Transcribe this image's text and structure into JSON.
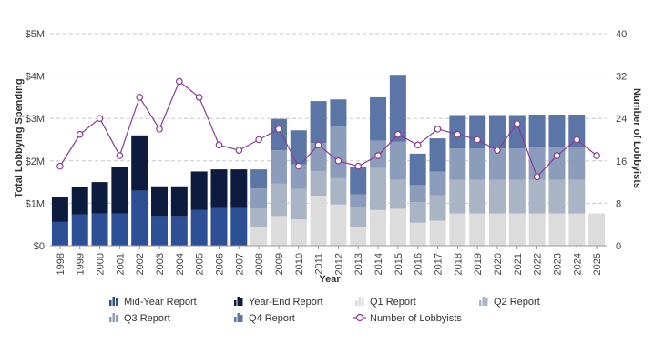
{
  "chart_data": {
    "type": "bar",
    "stacked": true,
    "xlabel": "Year",
    "ylabel": "Total Lobbying Spending",
    "y2label": "Number of Lobbyists",
    "ylim": [
      0,
      5000000
    ],
    "y2lim": [
      0,
      40
    ],
    "yticks": [
      {
        "value": 0,
        "label": "$0"
      },
      {
        "value": 1000000,
        "label": "$1M"
      },
      {
        "value": 2000000,
        "label": "$2M"
      },
      {
        "value": 3000000,
        "label": "$3M"
      },
      {
        "value": 4000000,
        "label": "$4M"
      },
      {
        "value": 5000000,
        "label": "$5M"
      }
    ],
    "y2ticks": [
      {
        "value": 0,
        "label": "0"
      },
      {
        "value": 8,
        "label": "8"
      },
      {
        "value": 16,
        "label": "16"
      },
      {
        "value": 24,
        "label": "24"
      },
      {
        "value": 32,
        "label": "32"
      },
      {
        "value": 40,
        "label": "40"
      }
    ],
    "grid": true,
    "legend_position": "bottom",
    "categories": [
      "1998",
      "1999",
      "2000",
      "2001",
      "2002",
      "2003",
      "2004",
      "2005",
      "2006",
      "2007",
      "2008",
      "2009",
      "2010",
      "2011",
      "2012",
      "2013",
      "2014",
      "2015",
      "2016",
      "2017",
      "2018",
      "2019",
      "2020",
      "2021",
      "2022",
      "2023",
      "2024",
      "2025"
    ],
    "series": [
      {
        "name": "Mid-Year Report",
        "kind": "bar",
        "color": "#2c4f96",
        "values": [
          560000,
          740000,
          760000,
          760000,
          1300000,
          700000,
          700000,
          840000,
          890000,
          890000,
          0,
          0,
          0,
          0,
          0,
          0,
          0,
          0,
          0,
          0,
          0,
          0,
          0,
          0,
          0,
          0,
          0,
          0
        ]
      },
      {
        "name": "Year-End Report",
        "kind": "bar",
        "color": "#0d1b3e",
        "values": [
          590000,
          650000,
          740000,
          1100000,
          1300000,
          700000,
          700000,
          910000,
          910000,
          910000,
          0,
          0,
          0,
          0,
          0,
          0,
          0,
          0,
          0,
          0,
          0,
          0,
          0,
          0,
          0,
          0,
          0,
          0
        ]
      },
      {
        "name": "Q1 Report",
        "kind": "bar",
        "color": "#dcdcdc",
        "values": [
          0,
          0,
          0,
          0,
          0,
          0,
          0,
          0,
          0,
          0,
          440000,
          700000,
          620000,
          1180000,
          970000,
          440000,
          840000,
          870000,
          540000,
          590000,
          760000,
          760000,
          760000,
          760000,
          760000,
          760000,
          760000,
          760000
        ]
      },
      {
        "name": "Q2 Report",
        "kind": "bar",
        "color": "#a9b4c4",
        "values": [
          0,
          0,
          0,
          0,
          0,
          0,
          0,
          0,
          0,
          0,
          440000,
          770000,
          720000,
          580000,
          620000,
          480000,
          990000,
          680000,
          490000,
          600000,
          790000,
          790000,
          790000,
          790000,
          790000,
          790000,
          790000,
          0
        ]
      },
      {
        "name": "Q3 Report",
        "kind": "bar",
        "color": "#8c9dbb",
        "values": [
          0,
          0,
          0,
          0,
          0,
          0,
          0,
          0,
          0,
          0,
          470000,
          780000,
          580000,
          660000,
          1240000,
          290000,
          650000,
          900000,
          400000,
          560000,
          740000,
          740000,
          740000,
          740000,
          760000,
          760000,
          760000,
          0
        ]
      },
      {
        "name": "Q4 Report",
        "kind": "bar",
        "color": "#5b76a6",
        "values": [
          0,
          0,
          0,
          0,
          0,
          0,
          0,
          0,
          0,
          0,
          450000,
          740000,
          800000,
          990000,
          620000,
          640000,
          1020000,
          1580000,
          740000,
          780000,
          790000,
          790000,
          790000,
          790000,
          780000,
          780000,
          780000,
          0
        ]
      },
      {
        "name": "Number of Lobbyists",
        "kind": "line",
        "color": "#8a3a96",
        "axis": "right",
        "values": [
          15,
          21,
          24,
          17,
          28,
          22,
          31,
          28,
          19,
          18,
          20,
          22,
          15,
          19,
          16,
          15,
          17,
          21,
          19,
          22,
          21,
          20,
          18,
          23,
          13,
          17,
          20,
          17
        ]
      }
    ]
  }
}
